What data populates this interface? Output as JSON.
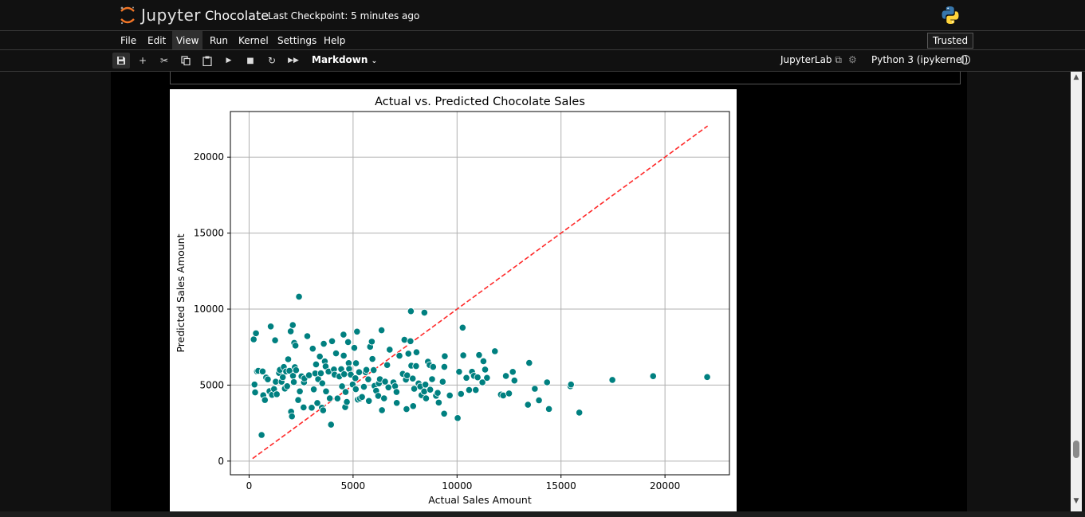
{
  "header": {
    "logo_text": "Jupyter",
    "notebook_title": "Chocolate",
    "checkpoint": "Last Checkpoint: 5 minutes ago",
    "kernel_icon": "python-logo-icon"
  },
  "menu": {
    "items": [
      "File",
      "Edit",
      "View",
      "Run",
      "Kernel",
      "Settings",
      "Help"
    ],
    "active": "View",
    "trusted": "Trusted"
  },
  "toolbar": {
    "icons": [
      "save-icon",
      "add-cell-icon",
      "cut-icon",
      "copy-icon",
      "paste-icon",
      "run-icon",
      "stop-icon",
      "restart-icon",
      "fast-forward-icon"
    ],
    "cell_type": "Markdown",
    "jupyterlab_link": "JupyterLab",
    "kernel_name": "Python 3 (ipykernel)",
    "kernel_status": "idle"
  },
  "colors": {
    "background": "#111111",
    "point_fill": "#008080",
    "reference_line": "#ff2a2a",
    "grid": "#b0b0b0"
  },
  "chart_data": {
    "type": "scatter",
    "title": "Actual vs. Predicted Chocolate Sales",
    "xlabel": "Actual Sales Amount",
    "ylabel": "Predicted Sales Amount",
    "xlim": [
      -900,
      23100
    ],
    "ylim": [
      -900,
      23000
    ],
    "xticks": [
      0,
      5000,
      10000,
      15000,
      20000
    ],
    "yticks": [
      0,
      5000,
      10000,
      15000,
      20000
    ],
    "grid": true,
    "reference_line": {
      "style": "dashed",
      "from": [
        168,
        168
      ],
      "to": [
        22050,
        22050
      ]
    },
    "points": [
      [
        220,
        8010
      ],
      [
        260,
        5040
      ],
      [
        290,
        4520
      ],
      [
        330,
        8410
      ],
      [
        380,
        5900
      ],
      [
        440,
        5940
      ],
      [
        600,
        1720
      ],
      [
        650,
        5900
      ],
      [
        680,
        4330
      ],
      [
        760,
        4020
      ],
      [
        820,
        5500
      ],
      [
        900,
        5380
      ],
      [
        980,
        4600
      ],
      [
        1040,
        8860
      ],
      [
        1100,
        4360
      ],
      [
        1200,
        4740
      ],
      [
        1250,
        7950
      ],
      [
        1280,
        5220
      ],
      [
        1330,
        4400
      ],
      [
        1440,
        5800
      ],
      [
        1480,
        6000
      ],
      [
        1560,
        5220
      ],
      [
        1620,
        5520
      ],
      [
        1670,
        6190
      ],
      [
        1720,
        4770
      ],
      [
        1780,
        5900
      ],
      [
        1830,
        4930
      ],
      [
        1880,
        6700
      ],
      [
        1940,
        5940
      ],
      [
        2000,
        8540
      ],
      [
        2020,
        3250
      ],
      [
        2060,
        2940
      ],
      [
        2100,
        8950
      ],
      [
        2110,
        5610
      ],
      [
        2150,
        5200
      ],
      [
        2170,
        7780
      ],
      [
        2200,
        6180
      ],
      [
        2230,
        7600
      ],
      [
        2260,
        5980
      ],
      [
        2360,
        4020
      ],
      [
        2400,
        10820
      ],
      [
        2440,
        4590
      ],
      [
        2520,
        5580
      ],
      [
        2620,
        3530
      ],
      [
        2640,
        5180
      ],
      [
        2660,
        5440
      ],
      [
        2800,
        8220
      ],
      [
        2880,
        5650
      ],
      [
        3010,
        3510
      ],
      [
        3060,
        7400
      ],
      [
        3110,
        4720
      ],
      [
        3180,
        5770
      ],
      [
        3220,
        6360
      ],
      [
        3280,
        3820
      ],
      [
        3320,
        5390
      ],
      [
        3400,
        6880
      ],
      [
        3450,
        5780
      ],
      [
        3500,
        3510
      ],
      [
        3520,
        5120
      ],
      [
        3560,
        3340
      ],
      [
        3590,
        7720
      ],
      [
        3640,
        6560
      ],
      [
        3680,
        6230
      ],
      [
        3700,
        4590
      ],
      [
        3820,
        5890
      ],
      [
        3880,
        4130
      ],
      [
        3940,
        2400
      ],
      [
        3990,
        7890
      ],
      [
        4080,
        6030
      ],
      [
        4110,
        5690
      ],
      [
        4180,
        7090
      ],
      [
        4250,
        4120
      ],
      [
        4340,
        5570
      ],
      [
        4430,
        6050
      ],
      [
        4470,
        4920
      ],
      [
        4540,
        8320
      ],
      [
        4550,
        6940
      ],
      [
        4570,
        5720
      ],
      [
        4620,
        3550
      ],
      [
        4640,
        4550
      ],
      [
        4700,
        3890
      ],
      [
        4760,
        7830
      ],
      [
        4790,
        6450
      ],
      [
        4810,
        6070
      ],
      [
        4890,
        5690
      ],
      [
        4980,
        5040
      ],
      [
        5060,
        7450
      ],
      [
        5110,
        5450
      ],
      [
        5130,
        4730
      ],
      [
        5140,
        6440
      ],
      [
        5190,
        8520
      ],
      [
        5230,
        4050
      ],
      [
        5290,
        5850
      ],
      [
        5330,
        4120
      ],
      [
        5430,
        4220
      ],
      [
        5520,
        4890
      ],
      [
        5600,
        5850
      ],
      [
        5640,
        6000
      ],
      [
        5730,
        5380
      ],
      [
        5760,
        3960
      ],
      [
        5820,
        7520
      ],
      [
        5900,
        7860
      ],
      [
        5930,
        6720
      ],
      [
        5990,
        5990
      ],
      [
        6030,
        4950
      ],
      [
        6110,
        4630
      ],
      [
        6210,
        4290
      ],
      [
        6240,
        5110
      ],
      [
        6290,
        5390
      ],
      [
        6370,
        8610
      ],
      [
        6390,
        3350
      ],
      [
        6490,
        4130
      ],
      [
        6540,
        5230
      ],
      [
        6640,
        6320
      ],
      [
        6700,
        4850
      ],
      [
        6760,
        7330
      ],
      [
        6940,
        5180
      ],
      [
        7020,
        4930
      ],
      [
        7090,
        4550
      ],
      [
        7100,
        3830
      ],
      [
        7230,
        6930
      ],
      [
        7390,
        5740
      ],
      [
        7470,
        7980
      ],
      [
        7540,
        5360
      ],
      [
        7570,
        3420
      ],
      [
        7600,
        5640
      ],
      [
        7660,
        7070
      ],
      [
        7760,
        7890
      ],
      [
        7780,
        9860
      ],
      [
        7800,
        6280
      ],
      [
        7870,
        5430
      ],
      [
        7890,
        3620
      ],
      [
        7940,
        4760
      ],
      [
        8030,
        6250
      ],
      [
        8050,
        7160
      ],
      [
        8150,
        5110
      ],
      [
        8230,
        4910
      ],
      [
        8290,
        4340
      ],
      [
        8420,
        4580
      ],
      [
        8430,
        9770
      ],
      [
        8480,
        5030
      ],
      [
        8510,
        4130
      ],
      [
        8600,
        6540
      ],
      [
        8680,
        6320
      ],
      [
        8710,
        4700
      ],
      [
        8800,
        5390
      ],
      [
        8850,
        6200
      ],
      [
        8990,
        4300
      ],
      [
        9070,
        4490
      ],
      [
        9120,
        3850
      ],
      [
        9310,
        5220
      ],
      [
        9380,
        3120
      ],
      [
        9390,
        6200
      ],
      [
        9410,
        6900
      ],
      [
        9650,
        4320
      ],
      [
        10030,
        2830
      ],
      [
        10100,
        5880
      ],
      [
        10190,
        4420
      ],
      [
        10270,
        8780
      ],
      [
        10300,
        6960
      ],
      [
        10450,
        5480
      ],
      [
        10580,
        4680
      ],
      [
        10720,
        5880
      ],
      [
        10810,
        5610
      ],
      [
        10900,
        4680
      ],
      [
        10990,
        5510
      ],
      [
        11060,
        6980
      ],
      [
        11220,
        5180
      ],
      [
        11270,
        6570
      ],
      [
        11350,
        6020
      ],
      [
        11440,
        5480
      ],
      [
        11820,
        7230
      ],
      [
        12110,
        4380
      ],
      [
        12220,
        4320
      ],
      [
        12350,
        5600
      ],
      [
        12500,
        4450
      ],
      [
        12680,
        5870
      ],
      [
        12760,
        5300
      ],
      [
        13410,
        3710
      ],
      [
        13470,
        6460
      ],
      [
        13740,
        4760
      ],
      [
        13940,
        4000
      ],
      [
        14330,
        5180
      ],
      [
        14420,
        3430
      ],
      [
        15450,
        4930
      ],
      [
        15480,
        5040
      ],
      [
        15880,
        3190
      ],
      [
        17470,
        5340
      ],
      [
        19430,
        5590
      ],
      [
        22030,
        5530
      ]
    ]
  }
}
